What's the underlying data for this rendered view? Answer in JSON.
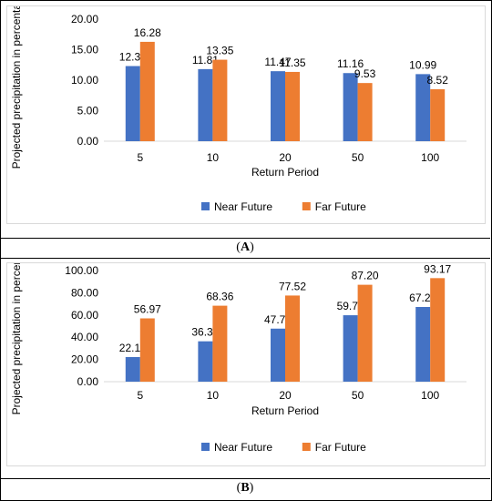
{
  "colors": {
    "near": "#4472C4",
    "far": "#ED7D31",
    "grid": "#d9d9d9",
    "text": "#000000"
  },
  "chart_data": [
    {
      "type": "bar",
      "caption": "A",
      "categories": [
        "5",
        "10",
        "20",
        "50",
        "100"
      ],
      "series": [
        {
          "name": "Near Future",
          "values": [
            12.31,
            11.81,
            11.47,
            11.16,
            10.99
          ]
        },
        {
          "name": "Far Future",
          "values": [
            16.28,
            13.35,
            11.35,
            9.53,
            8.52
          ]
        }
      ],
      "xlabel": "Return Period",
      "ylabel": "Projected precipitation in percentage",
      "ylim": [
        0,
        20
      ],
      "yticks": [
        "0.00",
        "5.00",
        "10.00",
        "15.00",
        "20.00"
      ],
      "grid": false,
      "legend": "bottom"
    },
    {
      "type": "bar",
      "caption": "B",
      "categories": [
        "5",
        "10",
        "20",
        "50",
        "100"
      ],
      "series": [
        {
          "name": "Near Future",
          "values": [
            22.16,
            36.33,
            47.73,
            59.78,
            67.21
          ]
        },
        {
          "name": "Far Future",
          "values": [
            56.97,
            68.36,
            77.52,
            87.2,
            93.17
          ]
        }
      ],
      "xlabel": "Return Period",
      "ylabel": "Projected precipitation in percentage",
      "ylim": [
        0,
        100
      ],
      "yticks": [
        "0.00",
        "20.00",
        "40.00",
        "60.00",
        "80.00",
        "100.00"
      ],
      "grid": false,
      "legend": "bottom"
    }
  ]
}
